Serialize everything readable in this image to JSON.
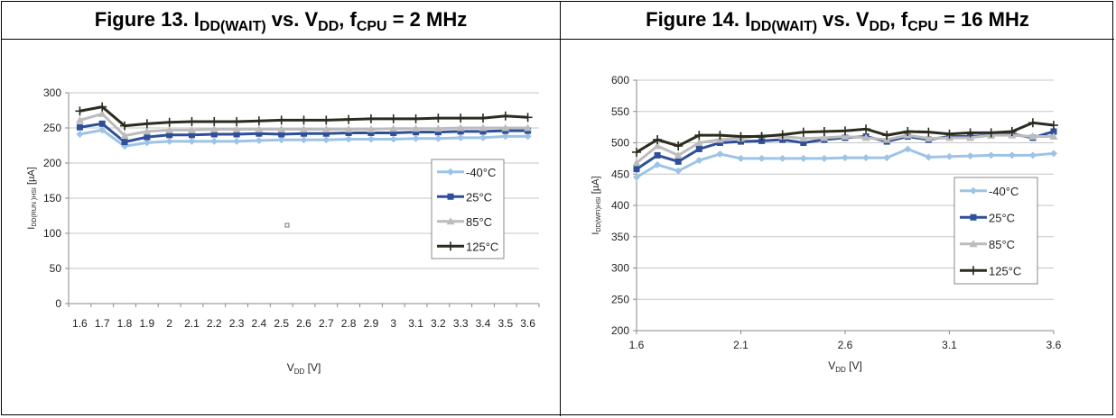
{
  "figures": [
    {
      "title_prefix": "Figure 13. I",
      "title_sub1": "DD(WAIT)",
      "title_mid": " vs. V",
      "title_sub2": "DD",
      "title_mid2": ", f",
      "title_sub3": "CPU",
      "title_suffix": " = 2 MHz"
    },
    {
      "title_prefix": "Figure 14. I",
      "title_sub1": "DD(WAIT)",
      "title_mid": " vs. V",
      "title_sub2": "DD",
      "title_mid2": ", f",
      "title_sub3": "CPU",
      "title_suffix": " = 16 MHz"
    }
  ],
  "colors": {
    "-40C": "#9dc3e6",
    "25C": "#2f4f9a",
    "85C": "#bcbcbc",
    "125C": "#2b2b1e"
  },
  "chart_data": [
    {
      "type": "line",
      "xlabel_main": "V",
      "xlabel_sub": "DD",
      "xlabel_unit": " [V]",
      "ylabel_main": "I",
      "ylabel_sub": "DD(RUN )HSI",
      "ylabel_unit": " [µA]",
      "x_categorical": true,
      "categories": [
        "1.6",
        "1.7",
        "1.8",
        "1.9",
        "2",
        "2.1",
        "2.2",
        "2.3",
        "2.4",
        "2.5",
        "2.6",
        "2.7",
        "2.8",
        "2.9",
        "3",
        "3.1",
        "3.2",
        "3.3",
        "3.4",
        "3.5",
        "3.6"
      ],
      "ylim": [
        0,
        300
      ],
      "yticks": [
        0,
        50,
        100,
        150,
        200,
        250,
        300
      ],
      "legend_position": "right",
      "series": [
        {
          "name": "-40°C",
          "color_key": "-40C",
          "marker": "diamond",
          "values": [
            241,
            247,
            224,
            229,
            231,
            231,
            231,
            231,
            232,
            233,
            233,
            233,
            234,
            234,
            234,
            235,
            235,
            236,
            236,
            238,
            238
          ]
        },
        {
          "name": "25°C",
          "color_key": "25C",
          "marker": "square",
          "values": [
            251,
            256,
            230,
            237,
            240,
            240,
            241,
            241,
            242,
            241,
            242,
            242,
            243,
            243,
            243,
            244,
            244,
            245,
            245,
            246,
            246
          ]
        },
        {
          "name": "85°C",
          "color_key": "85C",
          "marker": "triangle",
          "values": [
            261,
            270,
            239,
            245,
            247,
            247,
            248,
            248,
            248,
            248,
            248,
            248,
            248,
            248,
            249,
            249,
            249,
            250,
            250,
            250,
            250
          ]
        },
        {
          "name": "125°C",
          "color_key": "125C",
          "marker": "plus",
          "values": [
            274,
            280,
            253,
            256,
            258,
            259,
            259,
            259,
            260,
            261,
            261,
            261,
            262,
            263,
            263,
            263,
            264,
            264,
            264,
            267,
            265
          ]
        }
      ]
    },
    {
      "type": "line",
      "xlabel_main": "V",
      "xlabel_sub": "DD",
      "xlabel_unit": " [V]",
      "ylabel_main": "I",
      "ylabel_sub": "DD(WFI)HSI",
      "ylabel_unit": " [µA]",
      "xlim": [
        1.6,
        3.6
      ],
      "xticks": [
        1.6,
        2.1,
        2.6,
        3.1,
        3.6
      ],
      "xtick_labels": [
        "1.6",
        "2.1",
        "2.6",
        "3.1",
        "3.6"
      ],
      "x": [
        1.6,
        1.7,
        1.8,
        1.9,
        2.0,
        2.1,
        2.2,
        2.3,
        2.4,
        2.5,
        2.6,
        2.7,
        2.8,
        2.9,
        3.0,
        3.1,
        3.2,
        3.3,
        3.4,
        3.5,
        3.6
      ],
      "ylim": [
        200,
        600
      ],
      "yticks": [
        200,
        250,
        300,
        350,
        400,
        450,
        500,
        550,
        600
      ],
      "legend_position": "right",
      "series": [
        {
          "name": "-40°C",
          "color_key": "-40C",
          "marker": "diamond",
          "values": [
            445,
            465,
            455,
            472,
            482,
            475,
            475,
            475,
            475,
            475,
            476,
            476,
            476,
            490,
            477,
            478,
            479,
            480,
            480,
            480,
            483
          ]
        },
        {
          "name": "25°C",
          "color_key": "25C",
          "marker": "square",
          "values": [
            458,
            480,
            470,
            490,
            500,
            502,
            503,
            505,
            500,
            505,
            508,
            510,
            502,
            510,
            505,
            510,
            510,
            512,
            514,
            508,
            518
          ]
        },
        {
          "name": "85°C",
          "color_key": "85C",
          "marker": "triangle",
          "values": [
            468,
            495,
            480,
            500,
            505,
            507,
            512,
            510,
            507,
            508,
            510,
            508,
            505,
            512,
            507,
            508,
            508,
            512,
            512,
            510,
            510
          ]
        },
        {
          "name": "125°C",
          "color_key": "125C",
          "marker": "plus",
          "values": [
            485,
            505,
            495,
            512,
            512,
            510,
            510,
            513,
            517,
            518,
            519,
            522,
            512,
            518,
            517,
            514,
            516,
            516,
            518,
            532,
            528
          ]
        }
      ]
    }
  ]
}
